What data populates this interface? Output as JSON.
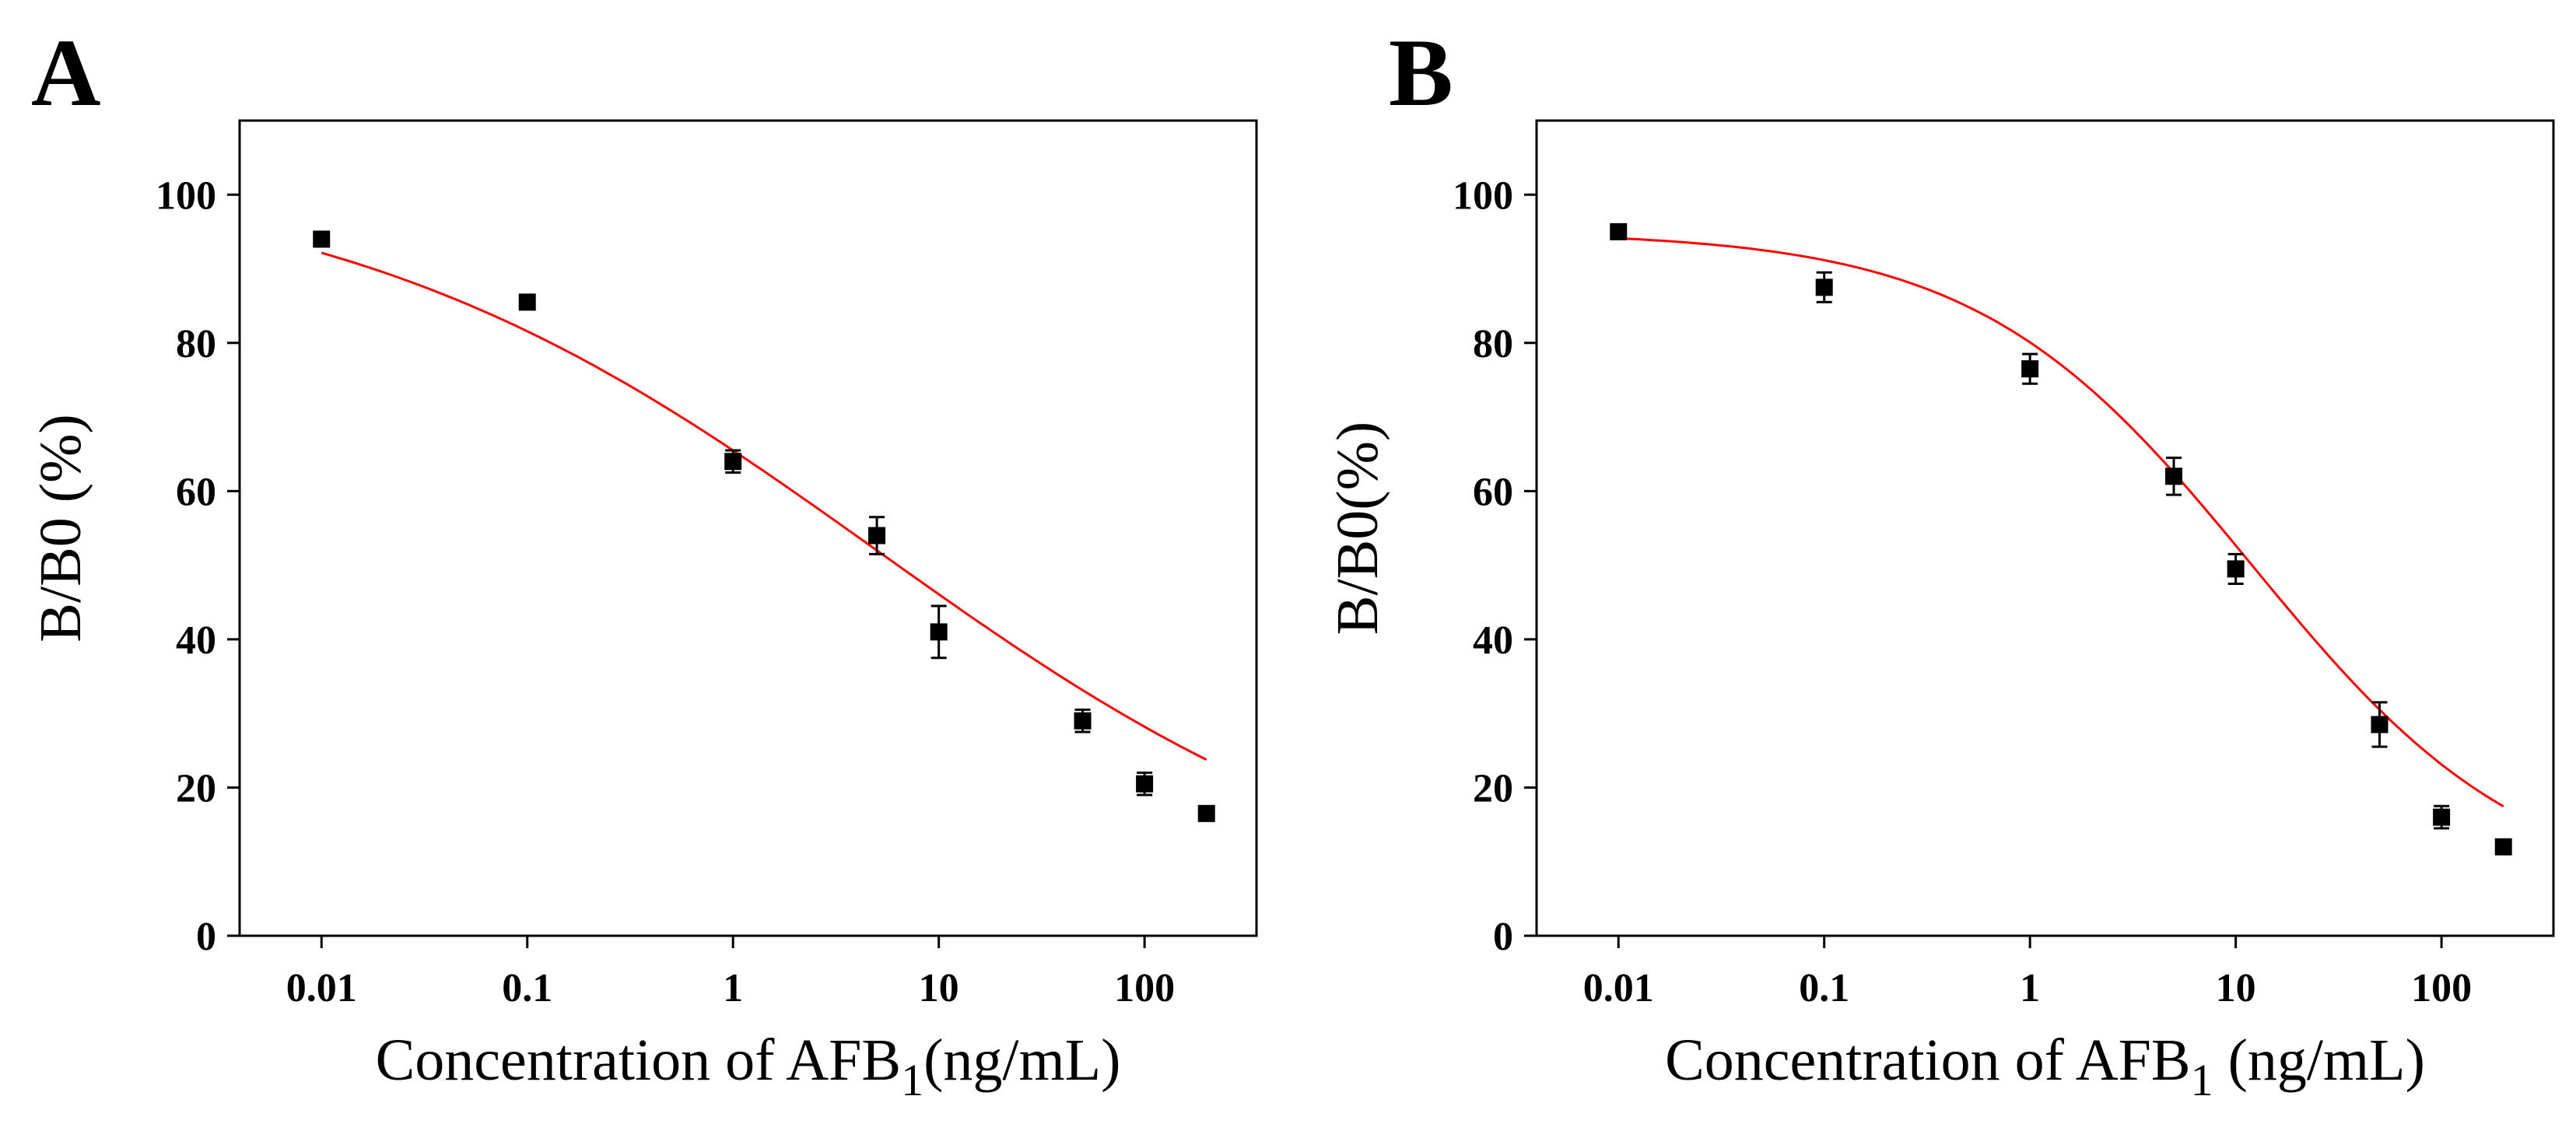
{
  "chart_data": [
    {
      "type": "scatter",
      "panel_label": "A",
      "xlabel": "Concentration of AFB",
      "xlabel_subscript": "1",
      "xlabel_suffix": "(ng/mL)",
      "ylabel": "B/B0 (%)",
      "xscale": "log",
      "xlim": [
        0.004,
        350
      ],
      "ylim": [
        0,
        110
      ],
      "xticks": [
        0.01,
        0.1,
        1,
        10,
        100
      ],
      "xtick_labels": [
        "0.01",
        "0.1",
        "1",
        "10",
        "100"
      ],
      "yticks": [
        0,
        20,
        40,
        60,
        80,
        100
      ],
      "ytick_labels": [
        "0",
        "20",
        "40",
        "60",
        "80",
        "100"
      ],
      "points": [
        {
          "x": 0.01,
          "y": 94,
          "err": 0.6
        },
        {
          "x": 0.1,
          "y": 85.5,
          "err": 0.7
        },
        {
          "x": 1,
          "y": 64,
          "err": 1.5
        },
        {
          "x": 5,
          "y": 54,
          "err": 2.5
        },
        {
          "x": 10,
          "y": 41,
          "err": 3.5
        },
        {
          "x": 50,
          "y": 29,
          "err": 1.5
        },
        {
          "x": 100,
          "y": 20.5,
          "err": 1.5
        },
        {
          "x": 200,
          "y": 16.5,
          "err": 0.8
        }
      ],
      "fit": {
        "model": "4PL",
        "top": 104,
        "bottom": 0,
        "ic50": 5.0,
        "hill": 0.33,
        "color": "#ff0000"
      },
      "marker_color": "#000000"
    },
    {
      "type": "scatter",
      "panel_label": "B",
      "xlabel": "Concentration of AFB",
      "xlabel_subscript": "1",
      "xlabel_suffix": " (ng/mL)",
      "ylabel": "B/B0(%)",
      "xscale": "log",
      "xlim": [
        0.004,
        350
      ],
      "ylim": [
        0,
        110
      ],
      "xticks": [
        0.01,
        0.1,
        1,
        10,
        100
      ],
      "xtick_labels": [
        "0.01",
        "0.1",
        "1",
        "10",
        "100"
      ],
      "yticks": [
        0,
        20,
        40,
        60,
        80,
        100
      ],
      "ytick_labels": [
        "0",
        "20",
        "40",
        "60",
        "80",
        "100"
      ],
      "points": [
        {
          "x": 0.01,
          "y": 95,
          "err": 0.6
        },
        {
          "x": 0.1,
          "y": 87.5,
          "err": 2.0
        },
        {
          "x": 1,
          "y": 76.5,
          "err": 2.0
        },
        {
          "x": 5,
          "y": 62,
          "err": 2.5
        },
        {
          "x": 10,
          "y": 49.5,
          "err": 2.0
        },
        {
          "x": 50,
          "y": 28.5,
          "err": 3.0
        },
        {
          "x": 100,
          "y": 16,
          "err": 1.5
        },
        {
          "x": 200,
          "y": 12,
          "err": 0.8
        }
      ],
      "fit": {
        "model": "4PL",
        "top": 95,
        "bottom": 5,
        "ic50": 12,
        "hill": 0.65,
        "color": "#ff0000"
      },
      "marker_color": "#000000"
    }
  ]
}
